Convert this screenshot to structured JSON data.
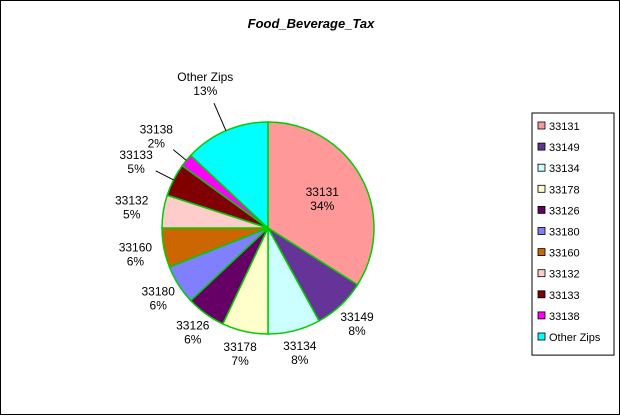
{
  "chart_data": {
    "type": "pie",
    "title": "Food_Beverage_Tax",
    "categories": [
      "33131",
      "33149",
      "33134",
      "33178",
      "33126",
      "33180",
      "33160",
      "33132",
      "33133",
      "33138",
      "Other Zips"
    ],
    "values": [
      34,
      8,
      8,
      7,
      6,
      6,
      6,
      5,
      5,
      2,
      13
    ],
    "value_labels": [
      "34%",
      "8%",
      "8%",
      "7%",
      "6%",
      "6%",
      "6%",
      "5%",
      "5%",
      "2%",
      "13%"
    ],
    "colors": [
      "#FF9999",
      "#663399",
      "#CCFFFF",
      "#FFFFCC",
      "#660066",
      "#8080FF",
      "#CC6600",
      "#FFCCCC",
      "#800000",
      "#FF00FF",
      "#00FFFF"
    ],
    "slice_border_color": "#00CC00",
    "legend_placement": "right",
    "start_angle": "12 o'clock",
    "direction": "clockwise"
  }
}
